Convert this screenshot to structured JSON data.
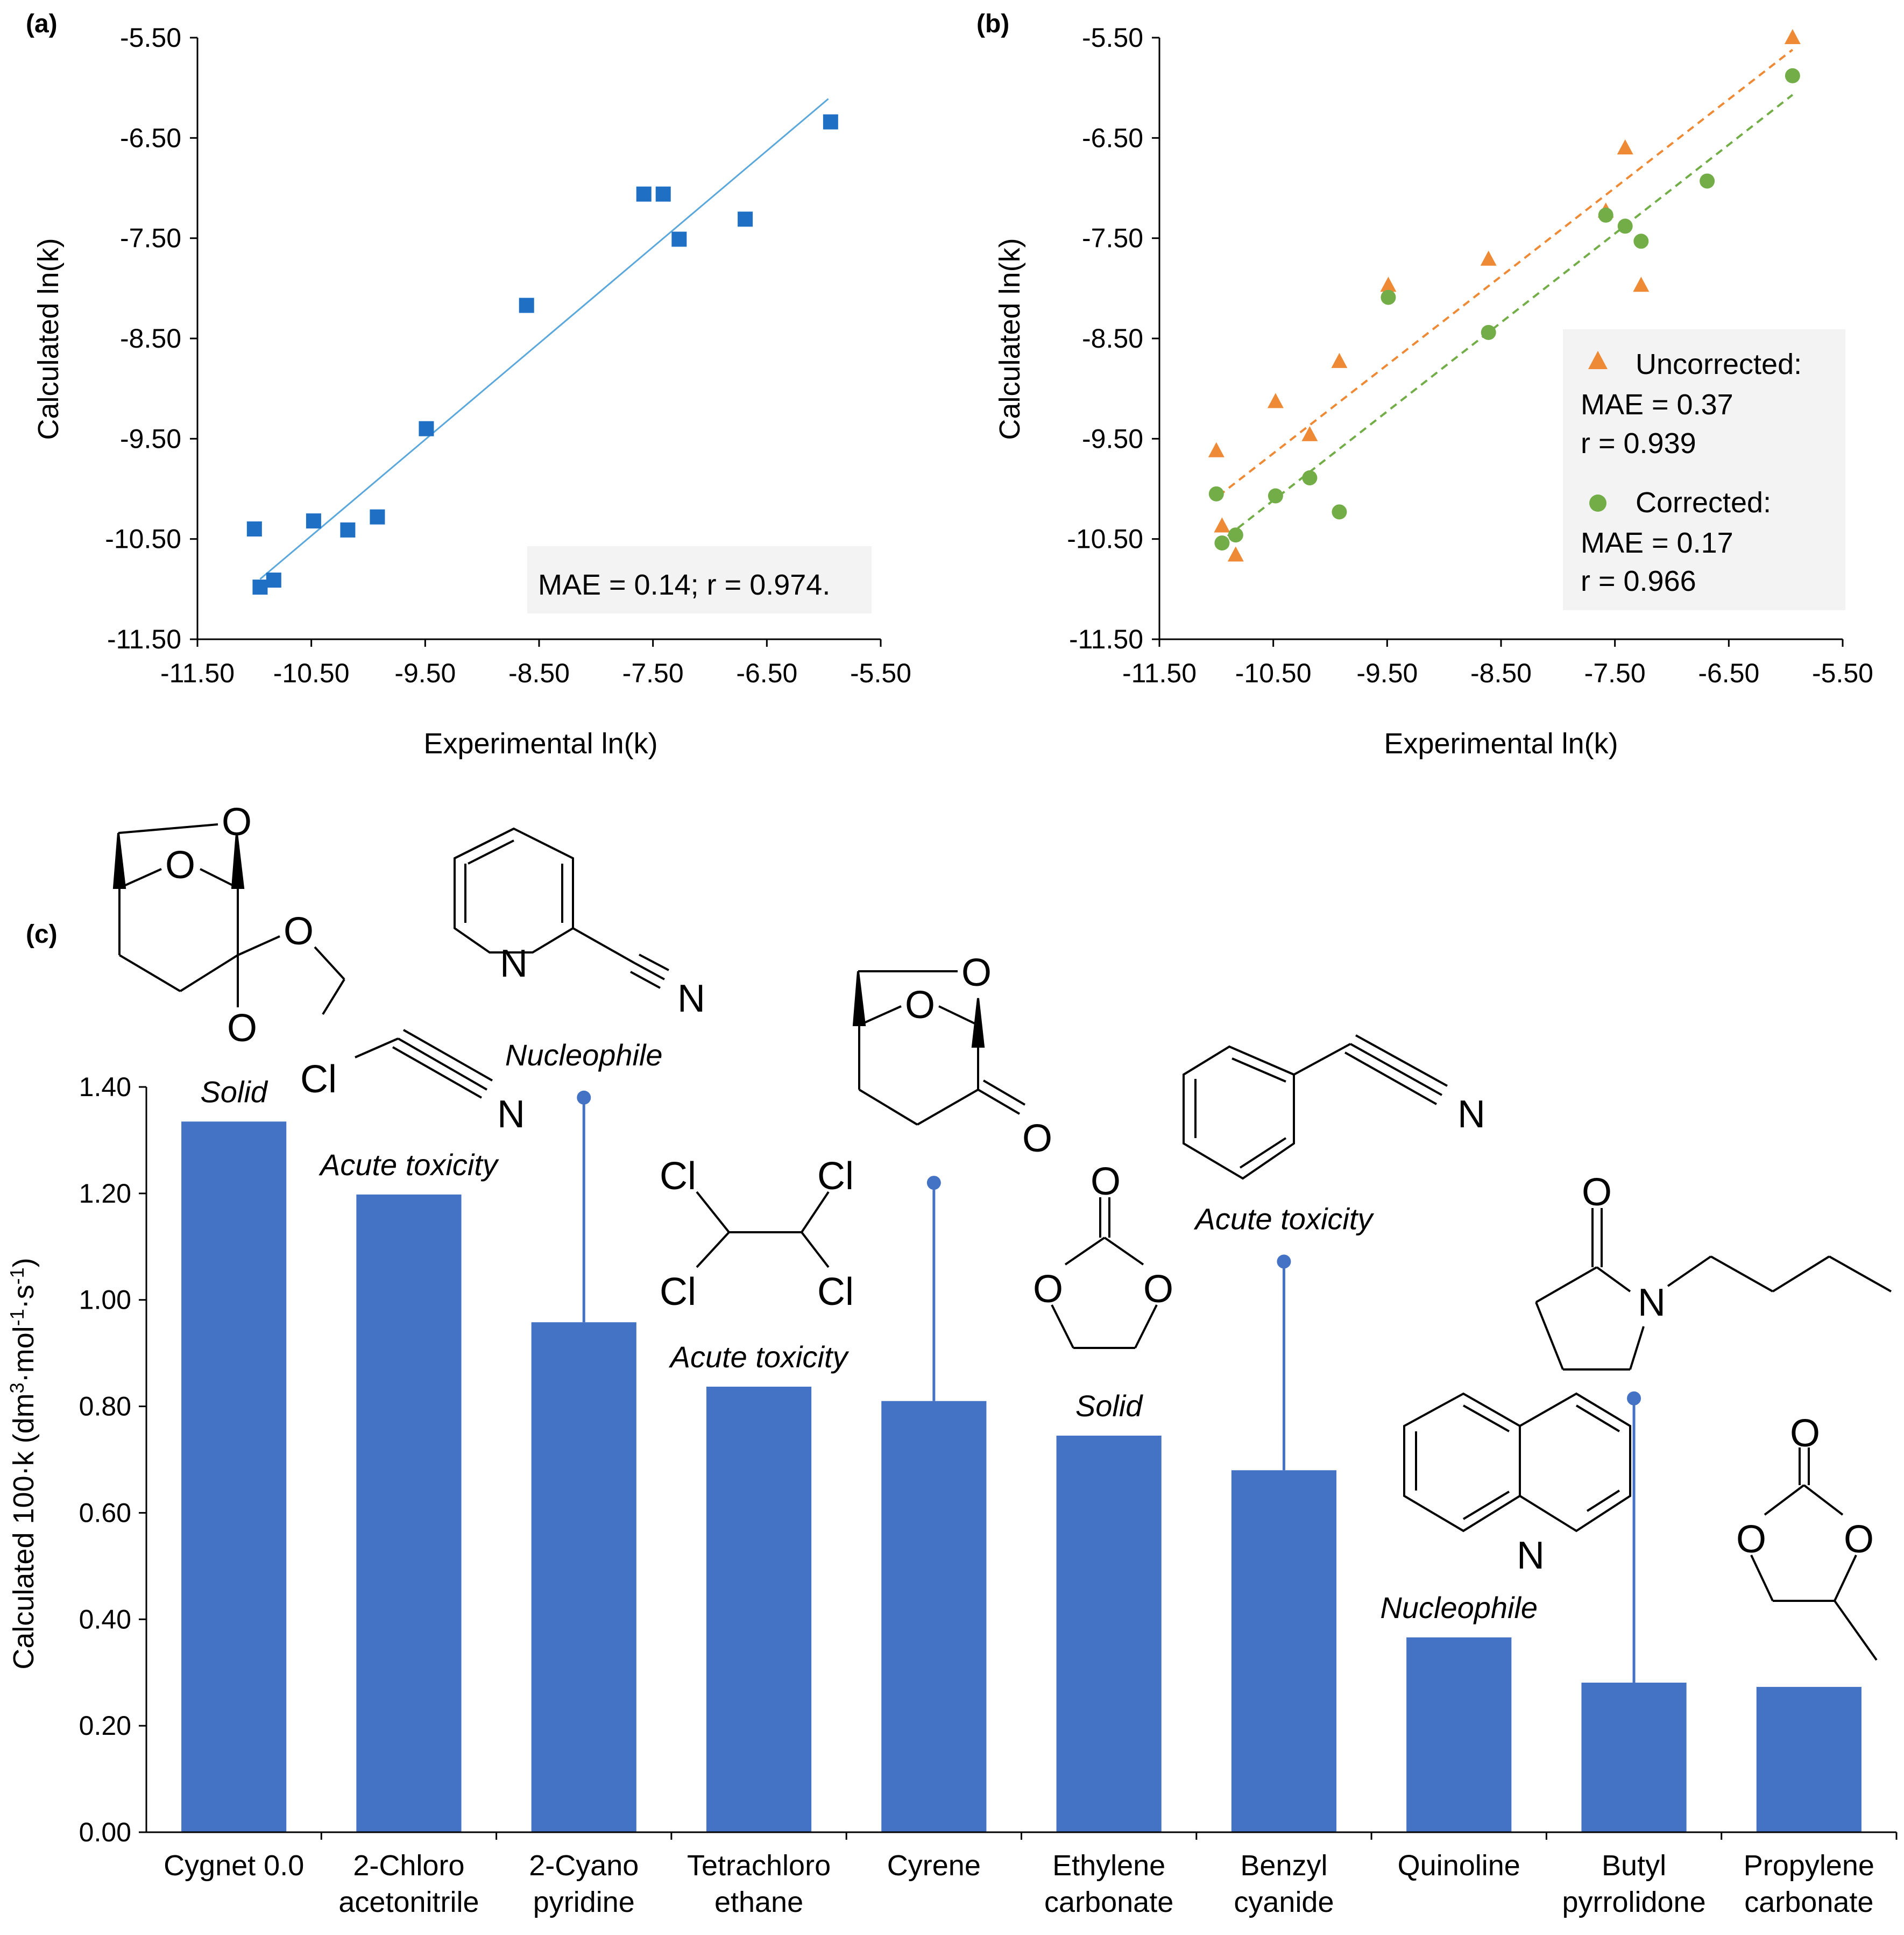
{
  "colors": {
    "fit_a": "#5aa7dc",
    "marker_a": "#1f6fc4",
    "uncorrected": "#ee8a35",
    "corrected": "#72ad47",
    "bar": "#4472c4",
    "legend_bg": "#f3f3f3"
  },
  "panels": {
    "a": {
      "label": "(a)"
    },
    "b": {
      "label": "(b)"
    },
    "c": {
      "label": "(c)"
    }
  },
  "chart_data": [
    {
      "id": "a",
      "type": "scatter",
      "title": "(a)",
      "xlabel": "Experimental  ln(k)",
      "ylabel": "Calculated  ln(k)",
      "xlim": [
        -11.5,
        -5.5
      ],
      "ylim": [
        -11.5,
        -5.5
      ],
      "ticks": [
        "-5.50",
        "-6.50",
        "-7.50",
        "-8.50",
        "-9.50",
        "-10.50",
        "-11.50"
      ],
      "x_ticks": [
        "-11.50",
        "-10.50",
        "-9.50",
        "-8.50",
        "-7.50",
        "-6.50",
        "-5.50"
      ],
      "tick_values": [
        -5.5,
        -6.5,
        -7.5,
        -8.5,
        -9.5,
        -10.5,
        -11.5
      ],
      "x_tick_values": [
        -11.5,
        -10.5,
        -9.5,
        -8.5,
        -7.5,
        -6.5,
        -5.5
      ],
      "points": [
        {
          "x": -11.0,
          "y": -10.4
        },
        {
          "x": -10.95,
          "y": -10.98
        },
        {
          "x": -10.83,
          "y": -10.91
        },
        {
          "x": -10.48,
          "y": -10.32
        },
        {
          "x": -10.18,
          "y": -10.41
        },
        {
          "x": -9.92,
          "y": -10.28
        },
        {
          "x": -9.49,
          "y": -9.4
        },
        {
          "x": -8.61,
          "y": -8.17
        },
        {
          "x": -7.58,
          "y": -7.06
        },
        {
          "x": -7.41,
          "y": -7.06
        },
        {
          "x": -7.27,
          "y": -7.51
        },
        {
          "x": -6.69,
          "y": -7.31
        },
        {
          "x": -5.94,
          "y": -6.34
        }
      ],
      "fit": {
        "x": [
          -10.95,
          -5.96
        ],
        "y": [
          -10.9,
          -6.11
        ]
      },
      "annotation": "MAE = 0.14; r = 0.974."
    },
    {
      "id": "b",
      "type": "scatter",
      "title": "(b)",
      "xlabel": "Experimental  ln(k)",
      "ylabel": "Calculated  ln(k)",
      "xlim": [
        -11.5,
        -5.5
      ],
      "ylim": [
        -11.5,
        -5.5
      ],
      "ticks": [
        "-5.50",
        "-6.50",
        "-7.50",
        "-8.50",
        "-9.50",
        "-10.50",
        "-11.50"
      ],
      "x_ticks": [
        "-11.50",
        "-10.50",
        "-9.50",
        "-8.50",
        "-7.50",
        "-6.50",
        "-5.50"
      ],
      "tick_values": [
        -5.5,
        -6.5,
        -7.5,
        -8.5,
        -9.5,
        -10.5,
        -11.5
      ],
      "x_tick_values": [
        -11.5,
        -10.5,
        -9.5,
        -8.5,
        -7.5,
        -6.5,
        -5.5
      ],
      "series": [
        {
          "name": "Uncorrected",
          "marker": "triangle",
          "points": [
            {
              "x": -11.0,
              "y": -9.62
            },
            {
              "x": -10.95,
              "y": -10.37
            },
            {
              "x": -10.83,
              "y": -10.66
            },
            {
              "x": -10.48,
              "y": -9.13
            },
            {
              "x": -10.18,
              "y": -9.46
            },
            {
              "x": -9.92,
              "y": -8.73
            },
            {
              "x": -9.49,
              "y": -7.97
            },
            {
              "x": -8.61,
              "y": -7.71
            },
            {
              "x": -7.58,
              "y": -7.23
            },
            {
              "x": -7.41,
              "y": -6.6
            },
            {
              "x": -7.27,
              "y": -7.97
            },
            {
              "x": -5.94,
              "y": -5.5
            }
          ],
          "fit": {
            "x": [
              -10.98,
              -5.94
            ],
            "y": [
              -10.07,
              -5.62
            ]
          },
          "stats": [
            "Uncorrected:",
            "MAE = 0.37",
            "r = 0.939"
          ]
        },
        {
          "name": "Corrected",
          "marker": "circle",
          "points": [
            {
              "x": -11.0,
              "y": -10.05
            },
            {
              "x": -10.95,
              "y": -10.54
            },
            {
              "x": -10.83,
              "y": -10.46
            },
            {
              "x": -10.48,
              "y": -10.07
            },
            {
              "x": -10.18,
              "y": -9.89
            },
            {
              "x": -9.92,
              "y": -10.23
            },
            {
              "x": -9.49,
              "y": -8.09
            },
            {
              "x": -8.61,
              "y": -8.44
            },
            {
              "x": -7.58,
              "y": -7.27
            },
            {
              "x": -7.41,
              "y": -7.38
            },
            {
              "x": -7.27,
              "y": -7.53
            },
            {
              "x": -6.69,
              "y": -6.93
            },
            {
              "x": -5.94,
              "y": -5.88
            }
          ],
          "fit": {
            "x": [
              -10.9,
              -5.94
            ],
            "y": [
              -10.47,
              -6.07
            ]
          },
          "stats": [
            "Corrected:",
            "MAE = 0.17",
            "r = 0.966"
          ]
        }
      ]
    },
    {
      "id": "c",
      "type": "bar",
      "title": "(c)",
      "ylabel_prefix": "Calculated  100·k (dm",
      "ylabel_units": [
        "3",
        "·mol",
        "-1",
        "·s",
        "-1",
        ")"
      ],
      "ylim": [
        0,
        1.4
      ],
      "ticks": [
        "0.00",
        "0.20",
        "0.40",
        "0.60",
        "0.80",
        "1.00",
        "1.20",
        "1.40"
      ],
      "tick_values": [
        0,
        0.2,
        0.4,
        0.6,
        0.8,
        1.0,
        1.2,
        1.4
      ],
      "categories": [
        [
          "Cygnet 0.0",
          ""
        ],
        [
          "2-Chloro",
          "acetonitrile"
        ],
        [
          "2-Cyano",
          "pyridine"
        ],
        [
          "Tetrachloro",
          "ethane"
        ],
        [
          "Cyrene",
          ""
        ],
        [
          "Ethylene",
          "carbonate"
        ],
        [
          "Benzyl",
          "cyanide"
        ],
        [
          "Quinoline",
          ""
        ],
        [
          "Butyl",
          "pyrrolidone"
        ],
        [
          "Propylene",
          "carbonate"
        ]
      ],
      "values": [
        1.335,
        1.198,
        0.958,
        0.837,
        0.81,
        0.745,
        0.68,
        0.366,
        0.281,
        0.273
      ],
      "error_tops": [
        null,
        null,
        1.38,
        null,
        1.22,
        null,
        1.072,
        null,
        0.815,
        null
      ],
      "notes": [
        "Solid",
        "Acute toxicity",
        "Nucleophile",
        "Acute toxicity",
        "",
        "Solid",
        "Acute toxicity",
        "Nucleophile",
        "",
        ""
      ]
    }
  ],
  "molecules": {
    "cygnet": {
      "atoms": [
        "O",
        "O",
        "O",
        "O"
      ]
    },
    "chloroacetonitrile": {
      "atoms": [
        "Cl",
        "N"
      ]
    },
    "cyanopyridine": {
      "atoms": [
        "N",
        "N"
      ]
    },
    "tetrachloroethane": {
      "atoms": [
        "Cl",
        "Cl",
        "Cl",
        "Cl"
      ]
    },
    "cyrene": {
      "atoms": [
        "O",
        "O",
        "O"
      ]
    },
    "ethylene_carbonate": {
      "atoms": [
        "O",
        "O",
        "O"
      ]
    },
    "benzyl_cyanide": {
      "atoms": [
        "N"
      ]
    },
    "quinoline": {
      "atoms": [
        "N"
      ]
    },
    "butyl_pyrrolidone": {
      "atoms": [
        "O",
        "N"
      ]
    },
    "propylene_carbonate": {
      "atoms": [
        "O",
        "O",
        "O"
      ]
    }
  }
}
